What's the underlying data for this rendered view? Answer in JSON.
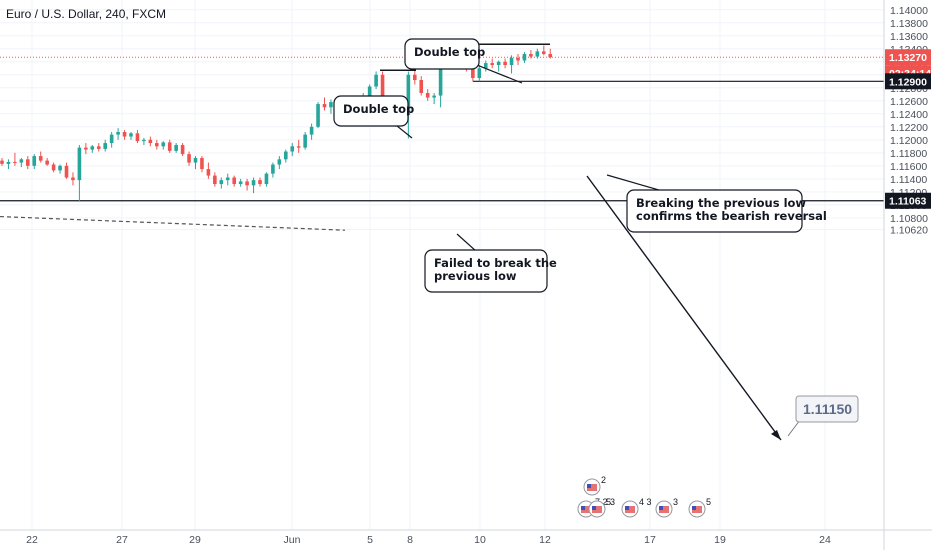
{
  "header": {
    "title": "Euro / U.S. Dollar, 240, FXCM"
  },
  "colors": {
    "up": "#26a69a",
    "down": "#ef5350",
    "grid": "#f0f3fa",
    "axis_text": "#4a4f5a",
    "line": "#131722",
    "price_line": "#ef5350"
  },
  "chart_data": {
    "type": "candlestick",
    "title": "Euro / U.S. Dollar, 240, FXCM",
    "ylim": [
      1.06,
      1.1415
    ],
    "y_ticks": [
      "1.14000",
      "1.13800",
      "1.13600",
      "1.13400",
      "1.13200",
      "1.13000",
      "1.12800",
      "1.12600",
      "1.12400",
      "1.12200",
      "1.12000",
      "1.11800",
      "1.11600",
      "1.11400",
      "1.11200",
      "1.11000",
      "1.10800",
      "1.10620"
    ],
    "x_ticks": [
      "22",
      "27",
      "29",
      "Jun",
      "5",
      "8",
      "10",
      "12",
      "17",
      "19",
      "24"
    ],
    "grid": "on",
    "candles": [
      [
        1.1168,
        1.1172,
        1.116,
        1.1163
      ],
      [
        1.1163,
        1.117,
        1.1155,
        1.1166
      ],
      [
        1.1166,
        1.118,
        1.116,
        1.1165
      ],
      [
        1.1165,
        1.1172,
        1.1158,
        1.117
      ],
      [
        1.117,
        1.1175,
        1.1155,
        1.116
      ],
      [
        1.116,
        1.1178,
        1.1155,
        1.1175
      ],
      [
        1.1175,
        1.1182,
        1.1165,
        1.1168
      ],
      [
        1.1168,
        1.1172,
        1.116,
        1.1162
      ],
      [
        1.1162,
        1.1165,
        1.115,
        1.1153
      ],
      [
        1.1153,
        1.1162,
        1.1148,
        1.116
      ],
      [
        1.116,
        1.1165,
        1.114,
        1.1142
      ],
      [
        1.1142,
        1.115,
        1.113,
        1.1138
      ],
      [
        1.1138,
        1.1192,
        1.1106,
        1.1188
      ],
      [
        1.1188,
        1.1195,
        1.1178,
        1.1185
      ],
      [
        1.1185,
        1.1192,
        1.118,
        1.119
      ],
      [
        1.119,
        1.1195,
        1.1182,
        1.1186
      ],
      [
        1.1186,
        1.12,
        1.1182,
        1.1195
      ],
      [
        1.1195,
        1.1212,
        1.1188,
        1.1208
      ],
      [
        1.1208,
        1.1218,
        1.12,
        1.1212
      ],
      [
        1.1212,
        1.1215,
        1.12,
        1.1205
      ],
      [
        1.1205,
        1.1212,
        1.12,
        1.121
      ],
      [
        1.121,
        1.1215,
        1.1195,
        1.1198
      ],
      [
        1.1198,
        1.1203,
        1.1192,
        1.12
      ],
      [
        1.12,
        1.1205,
        1.119,
        1.1195
      ],
      [
        1.1195,
        1.12,
        1.1185,
        1.119
      ],
      [
        1.119,
        1.1198,
        1.1185,
        1.1196
      ],
      [
        1.1196,
        1.12,
        1.118,
        1.1183
      ],
      [
        1.1183,
        1.1195,
        1.118,
        1.1192
      ],
      [
        1.1192,
        1.1195,
        1.1175,
        1.1178
      ],
      [
        1.1178,
        1.1182,
        1.116,
        1.1165
      ],
      [
        1.1165,
        1.1175,
        1.1155,
        1.1172
      ],
      [
        1.1172,
        1.1175,
        1.115,
        1.1155
      ],
      [
        1.1155,
        1.1165,
        1.114,
        1.1145
      ],
      [
        1.1145,
        1.115,
        1.1128,
        1.1132
      ],
      [
        1.1132,
        1.1142,
        1.1125,
        1.1138
      ],
      [
        1.1138,
        1.1148,
        1.113,
        1.1142
      ],
      [
        1.1142,
        1.1145,
        1.1128,
        1.1132
      ],
      [
        1.1132,
        1.114,
        1.1128,
        1.1136
      ],
      [
        1.1136,
        1.114,
        1.1122,
        1.113
      ],
      [
        1.113,
        1.1142,
        1.1118,
        1.1138
      ],
      [
        1.1138,
        1.1142,
        1.1128,
        1.1132
      ],
      [
        1.1132,
        1.115,
        1.1128,
        1.1148
      ],
      [
        1.1148,
        1.1165,
        1.1142,
        1.1162
      ],
      [
        1.1162,
        1.1175,
        1.1155,
        1.117
      ],
      [
        1.117,
        1.1185,
        1.1165,
        1.1182
      ],
      [
        1.1182,
        1.1195,
        1.1175,
        1.119
      ],
      [
        1.119,
        1.12,
        1.118,
        1.1188
      ],
      [
        1.1188,
        1.1212,
        1.1185,
        1.1208
      ],
      [
        1.1208,
        1.1225,
        1.12,
        1.122
      ],
      [
        1.122,
        1.1258,
        1.1218,
        1.1255
      ],
      [
        1.1255,
        1.1265,
        1.1245,
        1.125
      ],
      [
        1.125,
        1.1262,
        1.124,
        1.1258
      ],
      [
        1.1258,
        1.1262,
        1.1245,
        1.1248
      ],
      [
        1.1248,
        1.1252,
        1.1235,
        1.124
      ],
      [
        1.124,
        1.1255,
        1.1236,
        1.1252
      ],
      [
        1.1252,
        1.1268,
        1.1248,
        1.1262
      ],
      [
        1.1262,
        1.1272,
        1.1255,
        1.1265
      ],
      [
        1.1265,
        1.1285,
        1.126,
        1.1282
      ],
      [
        1.1282,
        1.1305,
        1.1278,
        1.13
      ],
      [
        1.13,
        1.1305,
        1.124,
        1.1248
      ],
      [
        1.1248,
        1.1252,
        1.1222,
        1.1228
      ],
      [
        1.1228,
        1.1238,
        1.122,
        1.1235
      ],
      [
        1.1235,
        1.1242,
        1.1225,
        1.1238
      ],
      [
        1.1238,
        1.1305,
        1.1202,
        1.13
      ],
      [
        1.13,
        1.131,
        1.1285,
        1.1292
      ],
      [
        1.1292,
        1.1298,
        1.1268,
        1.1272
      ],
      [
        1.1272,
        1.1278,
        1.126,
        1.1265
      ],
      [
        1.1265,
        1.1272,
        1.1255,
        1.1268
      ],
      [
        1.1268,
        1.1322,
        1.125,
        1.1318
      ],
      [
        1.1318,
        1.1345,
        1.131,
        1.134
      ],
      [
        1.134,
        1.1345,
        1.1315,
        1.1322
      ],
      [
        1.1322,
        1.133,
        1.131,
        1.1318
      ],
      [
        1.1318,
        1.1325,
        1.1305,
        1.1312
      ],
      [
        1.1312,
        1.1318,
        1.129,
        1.1295
      ],
      [
        1.1295,
        1.1315,
        1.129,
        1.131
      ],
      [
        1.131,
        1.1322,
        1.1305,
        1.1318
      ],
      [
        1.1318,
        1.1325,
        1.131,
        1.1315
      ],
      [
        1.1315,
        1.1322,
        1.1305,
        1.132
      ],
      [
        1.132,
        1.1325,
        1.131,
        1.1315
      ],
      [
        1.1315,
        1.133,
        1.1302,
        1.1326
      ],
      [
        1.1326,
        1.1332,
        1.1315,
        1.1322
      ],
      [
        1.1322,
        1.1335,
        1.1318,
        1.1332
      ],
      [
        1.1332,
        1.1338,
        1.1325,
        1.1328
      ],
      [
        1.1328,
        1.134,
        1.1325,
        1.1336
      ],
      [
        1.1336,
        1.1345,
        1.133,
        1.1332
      ],
      [
        1.1332,
        1.134,
        1.1325,
        1.1327
      ]
    ],
    "price_labels": {
      "current": "1.13270",
      "countdown": "02:34:14",
      "previous_low": "1.12900",
      "support": "1.11063"
    },
    "annotations": {
      "double_top_1": "Double top",
      "double_top_2": "Double top",
      "failed_break": [
        "Failed to break the",
        "previous low"
      ],
      "breaking_low": [
        "Breaking the previous low",
        "confirms the bearish reversal"
      ],
      "target": "1.11150"
    },
    "event_markers": [
      {
        "label": "2"
      },
      {
        "label": "7 2 3"
      },
      {
        "label": "5"
      },
      {
        "label": "4 3"
      },
      {
        "label": "3"
      },
      {
        "label": "5"
      }
    ]
  }
}
